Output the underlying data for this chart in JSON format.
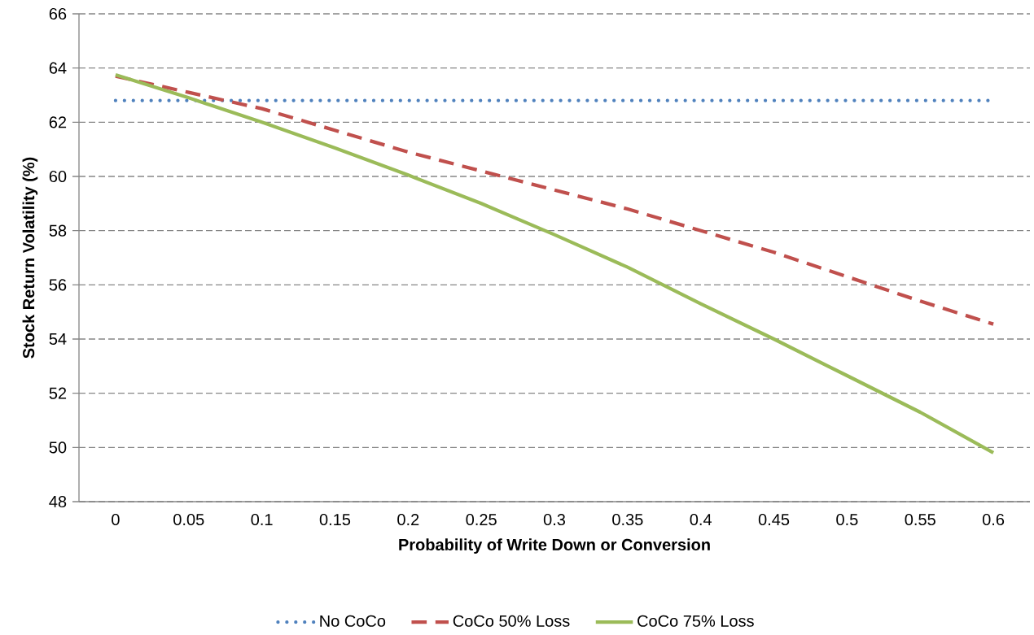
{
  "chart_data": {
    "type": "line",
    "xlabel": "Probability of Write Down or Conversion",
    "ylabel": "Stock Return Volatility (%)",
    "categories": [
      "0",
      "0.05",
      "0.1",
      "0.15",
      "0.2",
      "0.25",
      "0.3",
      "0.35",
      "0.4",
      "0.45",
      "0.5",
      "0.55",
      "0.6"
    ],
    "series": [
      {
        "name": "No CoCo",
        "color": "#4f81bd",
        "line_style": "dotted",
        "values": [
          62.8,
          62.8,
          62.8,
          62.8,
          62.8,
          62.8,
          62.8,
          62.8,
          62.8,
          62.8,
          62.8,
          62.8,
          62.8
        ]
      },
      {
        "name": "CoCo 50% Loss",
        "color": "#c0504d",
        "line_style": "dashed",
        "values": [
          63.7,
          63.1,
          62.5,
          61.7,
          60.9,
          60.2,
          59.5,
          58.8,
          58.0,
          57.2,
          56.3,
          55.4,
          54.55
        ]
      },
      {
        "name": "CoCo 75% Loss",
        "color": "#9bbb59",
        "line_style": "solid",
        "values": [
          63.75,
          62.9,
          62.0,
          61.05,
          60.05,
          59.0,
          57.85,
          56.65,
          55.3,
          54.0,
          52.65,
          51.3,
          49.8
        ]
      }
    ],
    "ylim": [
      48,
      66
    ],
    "yticks": [
      48,
      50,
      52,
      54,
      56,
      58,
      60,
      62,
      64,
      66
    ],
    "grid": "y",
    "legend": "bottom",
    "marker": "none"
  }
}
